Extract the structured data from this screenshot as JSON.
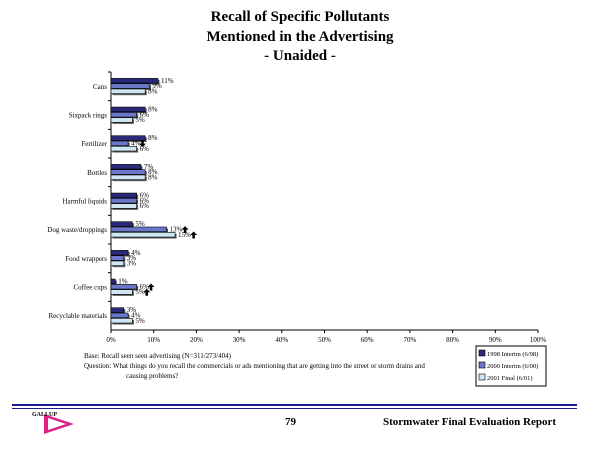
{
  "chart_data": {
    "type": "bar",
    "orientation": "horizontal",
    "title": [
      "Recall of Specific Pollutants",
      "Mentioned in the Advertising",
      "- Unaided -"
    ],
    "categories": [
      "Cans",
      "Sixpack rings",
      "Fertilizer",
      "Bottles",
      "Harmful liquids",
      "Dog waste/droppings",
      "Food wrappers",
      "Coffee cups",
      "Recyclable materials"
    ],
    "series": [
      {
        "name": "1998 Interim (6/98)",
        "color": "#2a2a7a",
        "values": [
          11,
          8,
          8,
          7,
          6,
          5,
          4,
          1,
          3
        ],
        "labels": [
          "11%",
          "8%",
          "8%",
          "7%",
          "6%",
          "5%",
          "4%",
          "1%",
          "3%"
        ]
      },
      {
        "name": "2000 Interim (6/00)",
        "color": "#6b77c9",
        "values": [
          9,
          6,
          4,
          8,
          6,
          13,
          3,
          6,
          4
        ],
        "labels": [
          "9%",
          "6%",
          "4%",
          "8%",
          "6%",
          "13%",
          "3%",
          "6%",
          "4%"
        ]
      },
      {
        "name": "2001 Final (6/01)",
        "color": "#cfe6f5",
        "values": [
          8,
          5,
          6,
          8,
          6,
          15,
          3,
          5,
          5
        ],
        "labels": [
          "8%",
          "5%",
          "6%",
          "8%",
          "6%",
          "15%",
          "3%",
          "5%",
          "5%"
        ]
      }
    ],
    "significance_arrows": [
      {
        "category": "Fertilizer",
        "series": 1,
        "direction": "down"
      },
      {
        "category": "Dog waste/droppings",
        "series": 1,
        "direction": "up"
      },
      {
        "category": "Dog waste/droppings",
        "series": 2,
        "direction": "up"
      },
      {
        "category": "Coffee cups",
        "series": 1,
        "direction": "up"
      },
      {
        "category": "Coffee cups",
        "series": 2,
        "direction": "up"
      }
    ],
    "xticks": [
      "0%",
      "10%",
      "20%",
      "30%",
      "40%",
      "50%",
      "60%",
      "70%",
      "80%",
      "90%",
      "100%"
    ],
    "xlim": [
      0,
      100
    ],
    "legend": "bottom-right",
    "grid": false
  },
  "notes": {
    "base": "Base: Recall seen seen advertising (N=311/273/404)",
    "question": "Question:  What things do you recall the commercials or ads mentioning that are getting into the street or storm drains and causing problems?"
  },
  "footer": {
    "page_number": "79",
    "report_title": "Stormwater Final Evaluation Report",
    "logo_text": "GALLUP"
  }
}
